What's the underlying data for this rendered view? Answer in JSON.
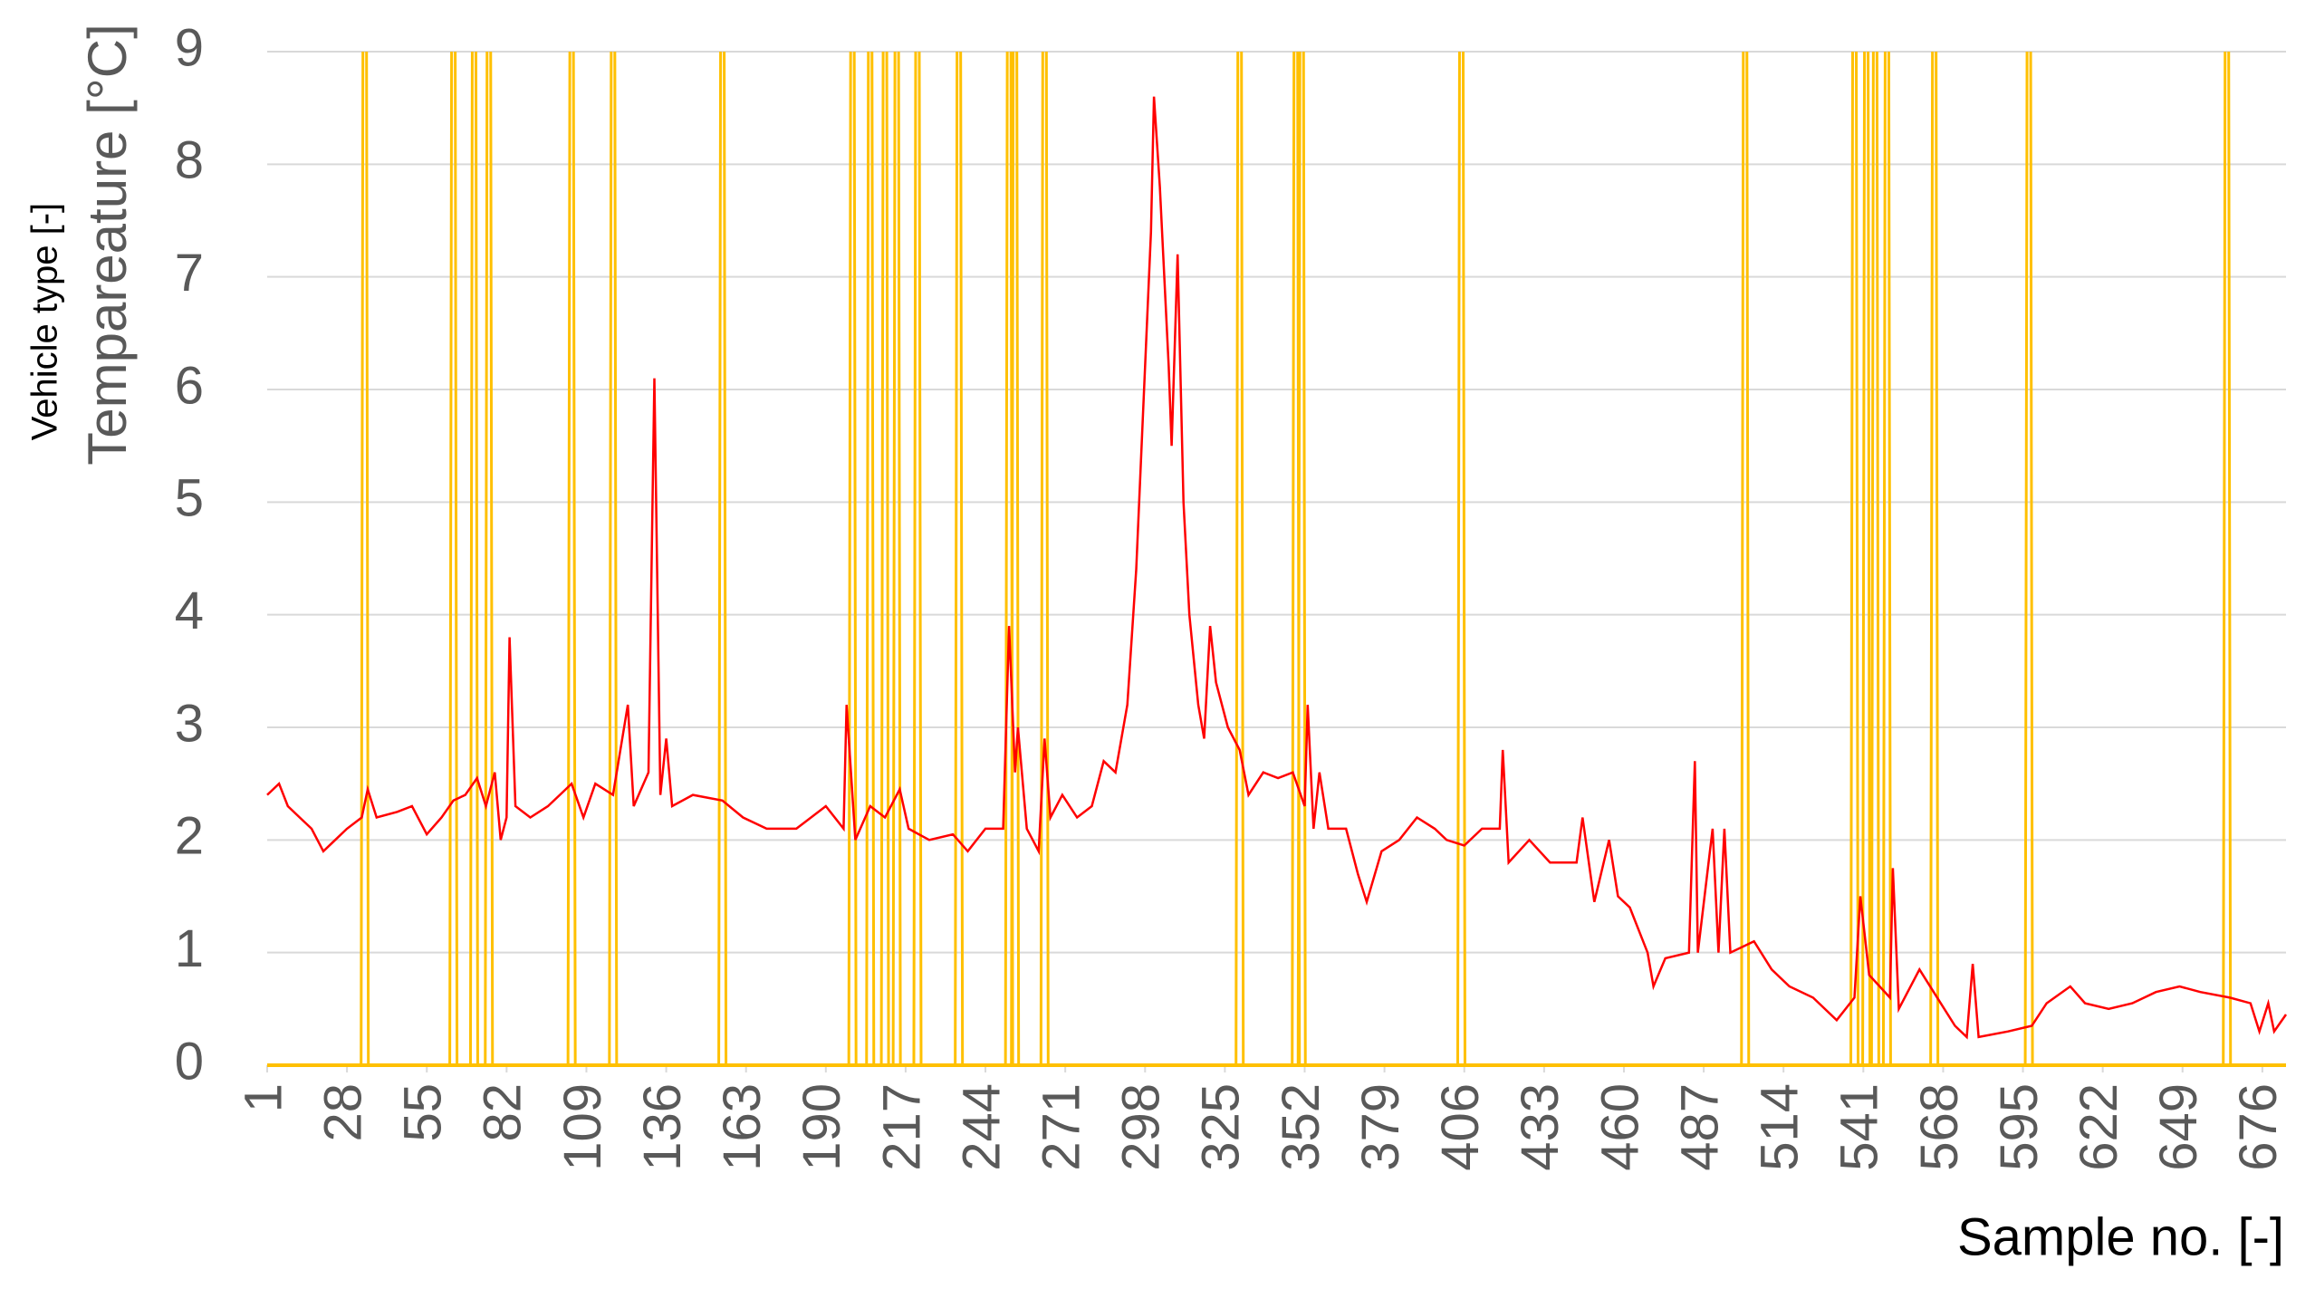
{
  "chart_data": {
    "type": "line",
    "y_label": "Tempareature [°C]",
    "y_label_secondary": "Vehicle type [-]",
    "x_label": "Sample no. [-]",
    "xlim": [
      1,
      684
    ],
    "xticks": [
      1,
      28,
      55,
      82,
      109,
      136,
      163,
      190,
      217,
      244,
      271,
      298,
      325,
      352,
      379,
      406,
      433,
      460,
      487,
      514,
      541,
      568,
      595,
      622,
      649,
      676
    ],
    "ylim": [
      0,
      9
    ],
    "yticks": [
      0,
      1,
      2,
      3,
      4,
      5,
      6,
      7,
      8,
      9
    ],
    "grid": true,
    "series": [
      {
        "color": "#ff0000",
        "style": "line",
        "x": [
          1,
          5,
          8,
          12,
          16,
          20,
          24,
          28,
          33,
          35,
          38,
          45,
          50,
          55,
          60,
          64,
          68,
          72,
          75,
          78,
          80,
          82,
          83,
          85,
          90,
          96,
          100,
          104,
          108,
          112,
          118,
          123,
          125,
          130,
          132,
          134,
          136,
          138,
          145,
          155,
          162,
          170,
          180,
          190,
          196,
          197,
          200,
          205,
          210,
          215,
          218,
          225,
          233,
          238,
          244,
          250,
          252,
          254,
          255,
          258,
          262,
          264,
          266,
          270,
          275,
          280,
          284,
          288,
          292,
          295,
          297,
          300,
          301,
          303,
          306,
          307,
          309,
          311,
          313,
          316,
          318,
          320,
          322,
          326,
          330,
          333,
          338,
          343,
          348,
          352,
          353,
          355,
          357,
          360,
          366,
          370,
          373,
          378,
          384,
          390,
          396,
          400,
          406,
          412,
          418,
          419,
          421,
          428,
          435,
          444,
          446,
          450,
          455,
          458,
          462,
          468,
          470,
          474,
          482,
          484,
          485,
          490,
          492,
          494,
          496,
          504,
          510,
          516,
          524,
          532,
          538,
          540,
          543,
          550,
          551,
          553,
          560,
          566,
          572,
          576,
          578,
          580,
          590,
          598,
          603,
          611,
          616,
          624,
          632,
          640,
          648,
          655,
          665,
          672,
          675,
          678,
          680,
          684
        ],
        "values": [
          2.4,
          2.5,
          2.3,
          2.2,
          2.1,
          1.9,
          2.0,
          2.1,
          2.2,
          2.45,
          2.2,
          2.25,
          2.3,
          2.05,
          2.2,
          2.35,
          2.4,
          2.55,
          2.3,
          2.6,
          2.0,
          2.2,
          3.8,
          2.3,
          2.2,
          2.3,
          2.4,
          2.5,
          2.2,
          2.5,
          2.4,
          3.2,
          2.3,
          2.6,
          6.1,
          2.4,
          2.9,
          2.3,
          2.4,
          2.35,
          2.2,
          2.1,
          2.1,
          2.3,
          2.1,
          3.2,
          2.0,
          2.3,
          2.2,
          2.45,
          2.1,
          2.0,
          2.05,
          1.9,
          2.1,
          2.1,
          3.9,
          2.6,
          3.0,
          2.1,
          1.9,
          2.9,
          2.2,
          2.4,
          2.2,
          2.3,
          2.7,
          2.6,
          3.2,
          4.4,
          5.6,
          7.4,
          8.6,
          7.8,
          6.2,
          5.5,
          7.2,
          5.0,
          4.0,
          3.2,
          2.9,
          3.9,
          3.4,
          3.0,
          2.8,
          2.4,
          2.6,
          2.55,
          2.6,
          2.3,
          3.2,
          2.1,
          2.6,
          2.1,
          2.1,
          1.7,
          1.45,
          1.9,
          2.0,
          2.2,
          2.1,
          2.0,
          1.95,
          2.1,
          2.1,
          2.8,
          1.8,
          2.0,
          1.8,
          1.8,
          2.2,
          1.45,
          2.0,
          1.5,
          1.4,
          1.0,
          0.7,
          0.95,
          1.0,
          2.7,
          1.0,
          2.1,
          1.0,
          2.1,
          1.0,
          1.1,
          0.85,
          0.7,
          0.6,
          0.4,
          0.6,
          1.5,
          0.8,
          0.6,
          1.75,
          0.5,
          0.85,
          0.6,
          0.35,
          0.25,
          0.9,
          0.25,
          0.3,
          0.35,
          0.55,
          0.7,
          0.55,
          0.5,
          0.55,
          0.65,
          0.7,
          0.65,
          0.6,
          0.55,
          0.3,
          0.55,
          0.3,
          0.45
        ]
      },
      {
        "color": "#ffc000",
        "style": "spike",
        "x": [
          34,
          64,
          71,
          76,
          104,
          118,
          155,
          199,
          205,
          210,
          214,
          221,
          235,
          252,
          254,
          264,
          330,
          349,
          351,
          405,
          501,
          538,
          542,
          545,
          549,
          565,
          597,
          664
        ],
        "values": [
          9,
          9,
          9,
          9,
          9,
          9,
          9,
          9,
          9,
          9,
          9,
          9,
          9,
          9,
          9,
          9,
          9,
          9,
          9,
          9,
          9,
          9,
          9,
          9,
          9,
          9,
          9,
          9
        ]
      }
    ]
  }
}
